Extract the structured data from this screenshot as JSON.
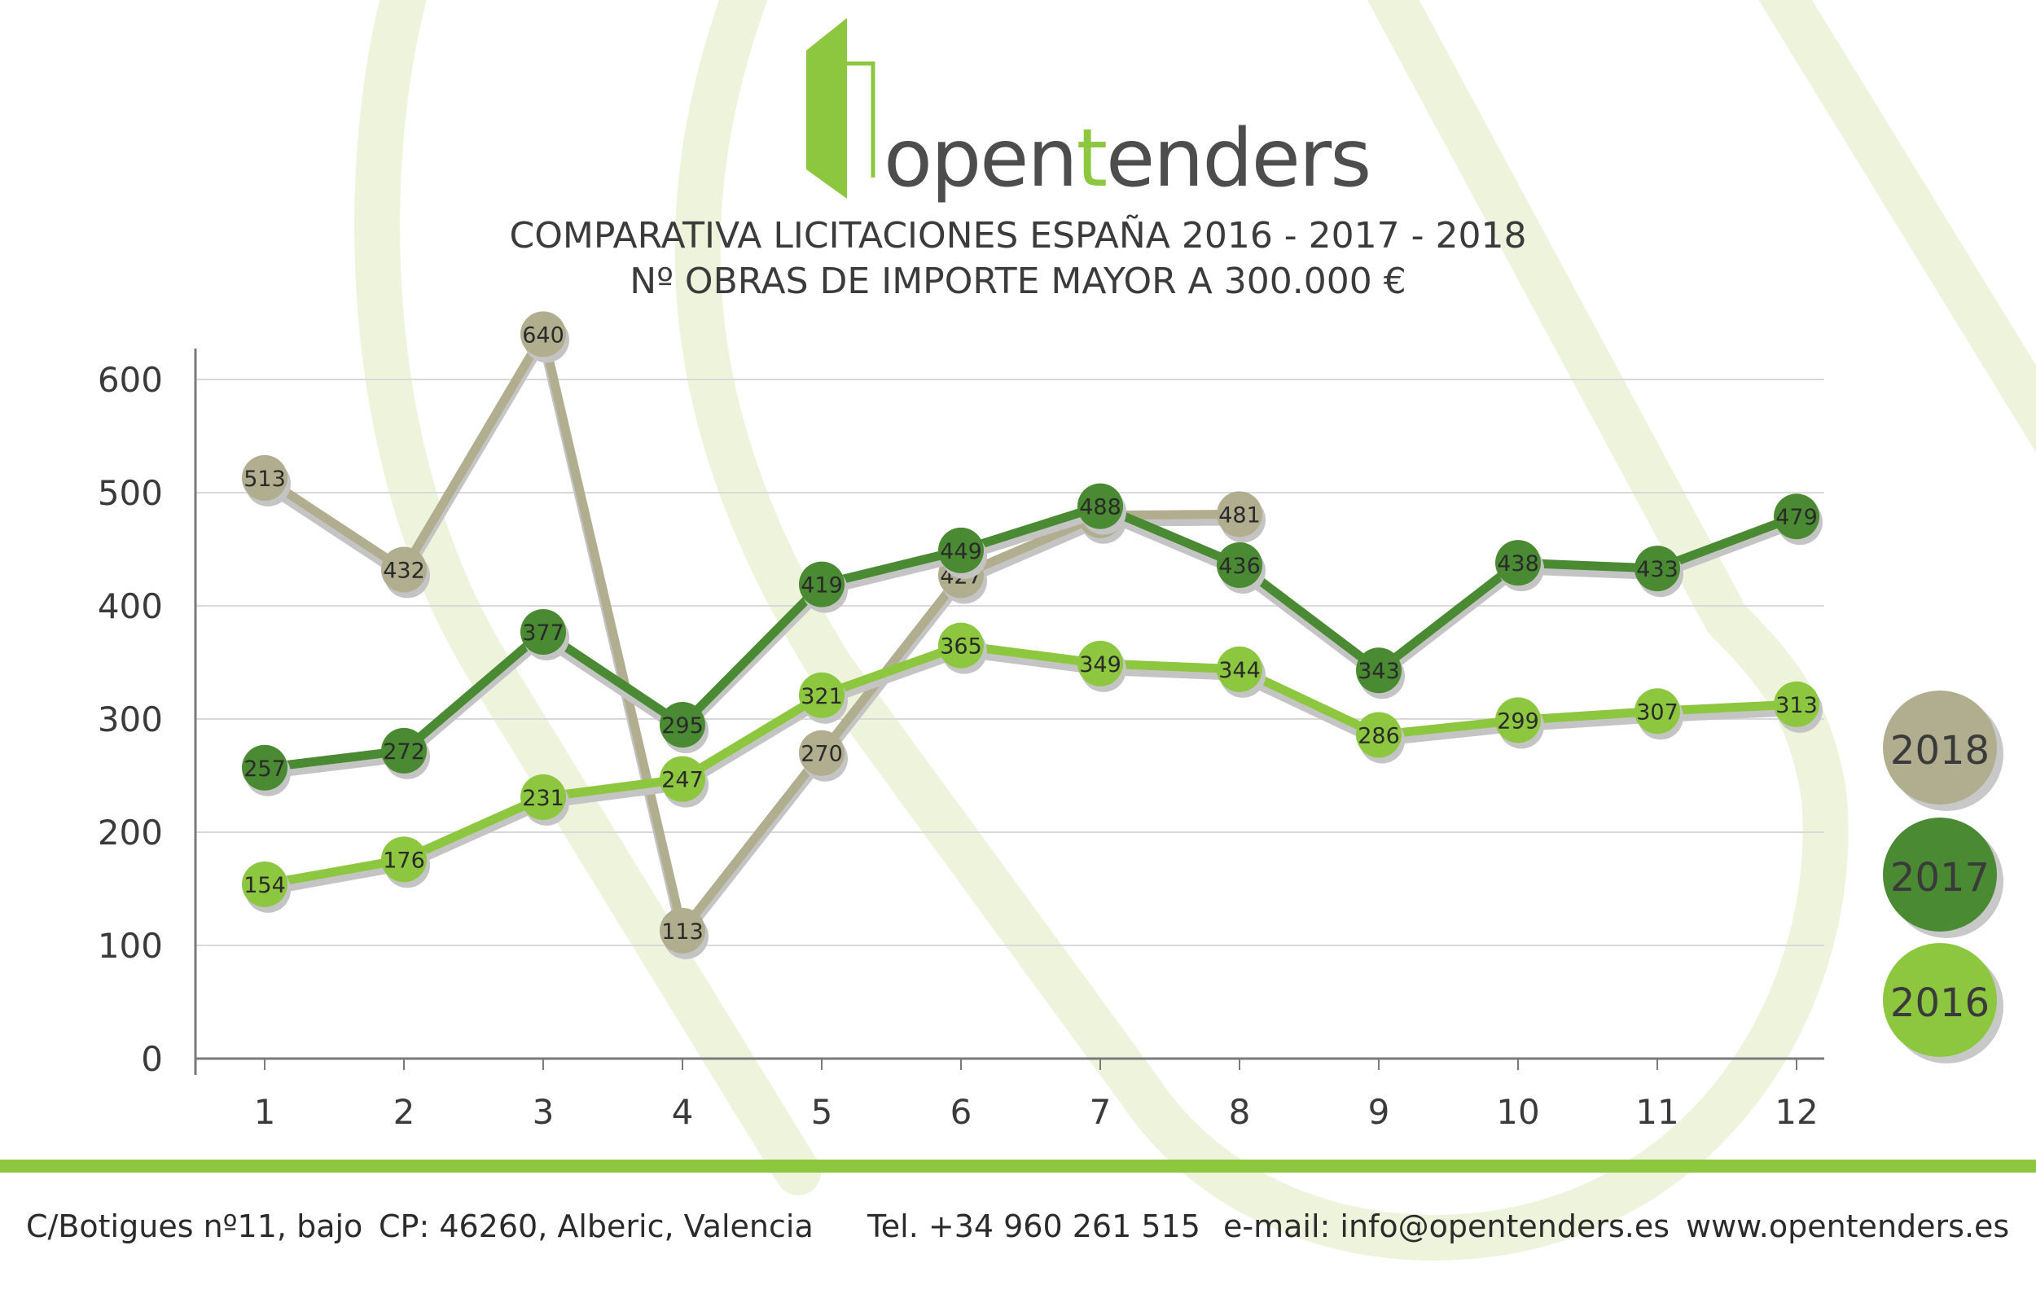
{
  "logo": {
    "word_start": "open",
    "word_accent": "t",
    "word_end": "enders",
    "brand_green": "#8dc63f"
  },
  "title_line1": "COMPARATIVA LICITACIONES ESPAÑA 2016 - 2017 - 2018",
  "title_line2": "Nº OBRAS DE IMPORTE MAYOR A 300.000 €",
  "chart_data": {
    "type": "line",
    "title": "COMPARATIVA LICITACIONES ESPAÑA 2016 - 2017 - 2018",
    "subtitle": "Nº OBRAS DE IMPORTE MAYOR A 300.000 €",
    "xlabel": "",
    "ylabel": "",
    "x": [
      "1",
      "2",
      "3",
      "4",
      "5",
      "6",
      "7",
      "8",
      "9",
      "10",
      "11",
      "12"
    ],
    "ylim": [
      0,
      600
    ],
    "yticks": [
      0,
      100,
      200,
      300,
      400,
      500,
      600
    ],
    "grid": true,
    "legend": "right",
    "series": [
      {
        "name": "2018",
        "color": "#b0ae8e",
        "values": [
          513,
          432,
          640,
          113,
          270,
          427,
          480,
          481,
          null,
          null,
          null,
          null
        ]
      },
      {
        "name": "2017",
        "color": "#4a8a32",
        "values": [
          257,
          272,
          377,
          295,
          419,
          449,
          488,
          436,
          343,
          438,
          433,
          479
        ]
      },
      {
        "name": "2016",
        "color": "#8dc63f",
        "values": [
          154,
          176,
          231,
          247,
          321,
          365,
          349,
          344,
          286,
          299,
          307,
          313
        ]
      }
    ]
  },
  "footer": {
    "address": "C/Botigues nº11, bajo",
    "cp": "CP: 46260, Alberic, Valencia",
    "tel": "Tel. +34 960 261 515",
    "email": "e-mail: info@opentenders.es",
    "web": "www.opentenders.es"
  }
}
